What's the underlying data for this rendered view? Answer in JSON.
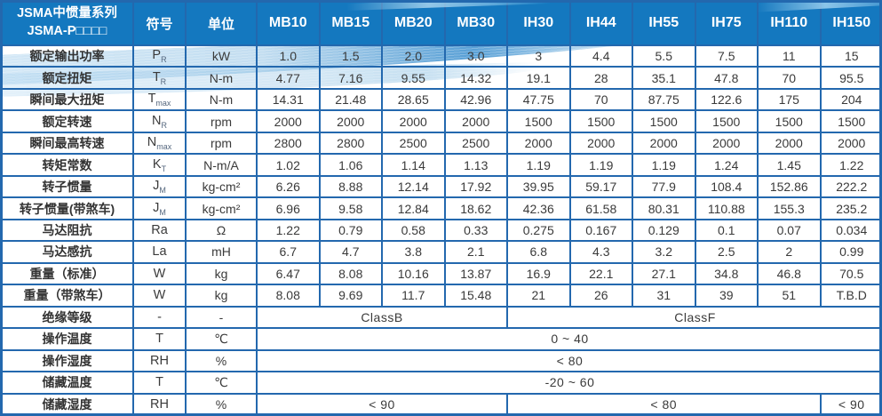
{
  "header": {
    "title_line1": "JSMA中惯量系列",
    "title_line2": "JSMA-P□□□□",
    "symbol_col": "符号",
    "unit_col": "单位",
    "models": [
      "MB10",
      "MB15",
      "MB20",
      "MB30",
      "IH30",
      "IH44",
      "IH55",
      "IH75",
      "IH110",
      "IH150"
    ]
  },
  "rows": [
    {
      "label": "额定输出功率",
      "sym": "P",
      "sub": "R",
      "unit": "kW",
      "cells": [
        "1.0",
        "1.5",
        "2.0",
        "3.0",
        "3",
        "4.4",
        "5.5",
        "7.5",
        "11",
        "15"
      ]
    },
    {
      "label": "额定扭矩",
      "sym": "T",
      "sub": "R",
      "unit": "N-m",
      "cells": [
        "4.77",
        "7.16",
        "9.55",
        "14.32",
        "19.1",
        "28",
        "35.1",
        "47.8",
        "70",
        "95.5"
      ]
    },
    {
      "label": "瞬间最大扭矩",
      "sym": "T",
      "sub": "max",
      "unit": "N-m",
      "cells": [
        "14.31",
        "21.48",
        "28.65",
        "42.96",
        "47.75",
        "70",
        "87.75",
        "122.6",
        "175",
        "204"
      ]
    },
    {
      "label": "额定转速",
      "sym": "N",
      "sub": "R",
      "unit": "rpm",
      "cells": [
        "2000",
        "2000",
        "2000",
        "2000",
        "1500",
        "1500",
        "1500",
        "1500",
        "1500",
        "1500"
      ]
    },
    {
      "label": "瞬间最高转速",
      "sym": "N",
      "sub": "max",
      "unit": "rpm",
      "cells": [
        "2800",
        "2800",
        "2500",
        "2500",
        "2000",
        "2000",
        "2000",
        "2000",
        "2000",
        "2000"
      ]
    },
    {
      "label": "转矩常数",
      "sym": "K",
      "sub": "T",
      "unit": "N-m/A",
      "cells": [
        "1.02",
        "1.06",
        "1.14",
        "1.13",
        "1.19",
        "1.19",
        "1.19",
        "1.24",
        "1.45",
        "1.22"
      ]
    },
    {
      "label": "转子惯量",
      "sym": "J",
      "sub": "M",
      "unit": "kg-cm²",
      "cells": [
        "6.26",
        "8.88",
        "12.14",
        "17.92",
        "39.95",
        "59.17",
        "77.9",
        "108.4",
        "152.86",
        "222.2"
      ]
    },
    {
      "label": "转子惯量(带煞车)",
      "sym": "J",
      "sub": "M",
      "unit": "kg-cm²",
      "cells": [
        "6.96",
        "9.58",
        "12.84",
        "18.62",
        "42.36",
        "61.58",
        "80.31",
        "110.88",
        "155.3",
        "235.2"
      ]
    },
    {
      "label": "马达阻抗",
      "sym": "Ra",
      "sub": "",
      "unit": "Ω",
      "cells": [
        "1.22",
        "0.79",
        "0.58",
        "0.33",
        "0.275",
        "0.167",
        "0.129",
        "0.1",
        "0.07",
        "0.034"
      ]
    },
    {
      "label": "马达感抗",
      "sym": "La",
      "sub": "",
      "unit": "mH",
      "cells": [
        "6.7",
        "4.7",
        "3.8",
        "2.1",
        "6.8",
        "4.3",
        "3.2",
        "2.5",
        "2",
        "0.99"
      ]
    },
    {
      "label": "重量（标准）",
      "sym": "W",
      "sub": "",
      "unit": "kg",
      "cells": [
        "6.47",
        "8.08",
        "10.16",
        "13.87",
        "16.9",
        "22.1",
        "27.1",
        "34.8",
        "46.8",
        "70.5"
      ]
    },
    {
      "label": "重量（带煞车）",
      "sym": "W",
      "sub": "",
      "unit": "kg",
      "cells": [
        "8.08",
        "9.69",
        "11.7",
        "15.48",
        "21",
        "26",
        "31",
        "39",
        "51",
        "T.B.D"
      ]
    },
    {
      "label": "绝缘等级",
      "sym": "-",
      "sub": "",
      "unit": "-",
      "cells": [
        {
          "text": "ClassB",
          "span": 4
        },
        {
          "text": "ClassF",
          "span": 6
        }
      ]
    },
    {
      "label": "操作温度",
      "sym": "T",
      "sub": "",
      "unit": "℃",
      "cells": [
        {
          "text": "0 ~ 40",
          "span": 10
        }
      ]
    },
    {
      "label": "操作湿度",
      "sym": "RH",
      "sub": "",
      "unit": "%",
      "cells": [
        {
          "text": "< 80",
          "span": 10
        }
      ]
    },
    {
      "label": "储藏温度",
      "sym": "T",
      "sub": "",
      "unit": "℃",
      "cells": [
        {
          "text": "-20 ~ 60",
          "span": 10
        }
      ]
    },
    {
      "label": "储藏湿度",
      "sym": "RH",
      "sub": "",
      "unit": "%",
      "cells": [
        {
          "text": "< 90",
          "span": 4
        },
        {
          "text": "< 80",
          "span": 5
        },
        {
          "text": "< 90",
          "span": 1
        }
      ]
    }
  ],
  "colors": {
    "header_bg": "#1478bf",
    "border": "#2368ae",
    "text": "#3a3a3a",
    "swoosh_light": "#a8cfe9",
    "swoosh_deep": "#2d87cb"
  }
}
